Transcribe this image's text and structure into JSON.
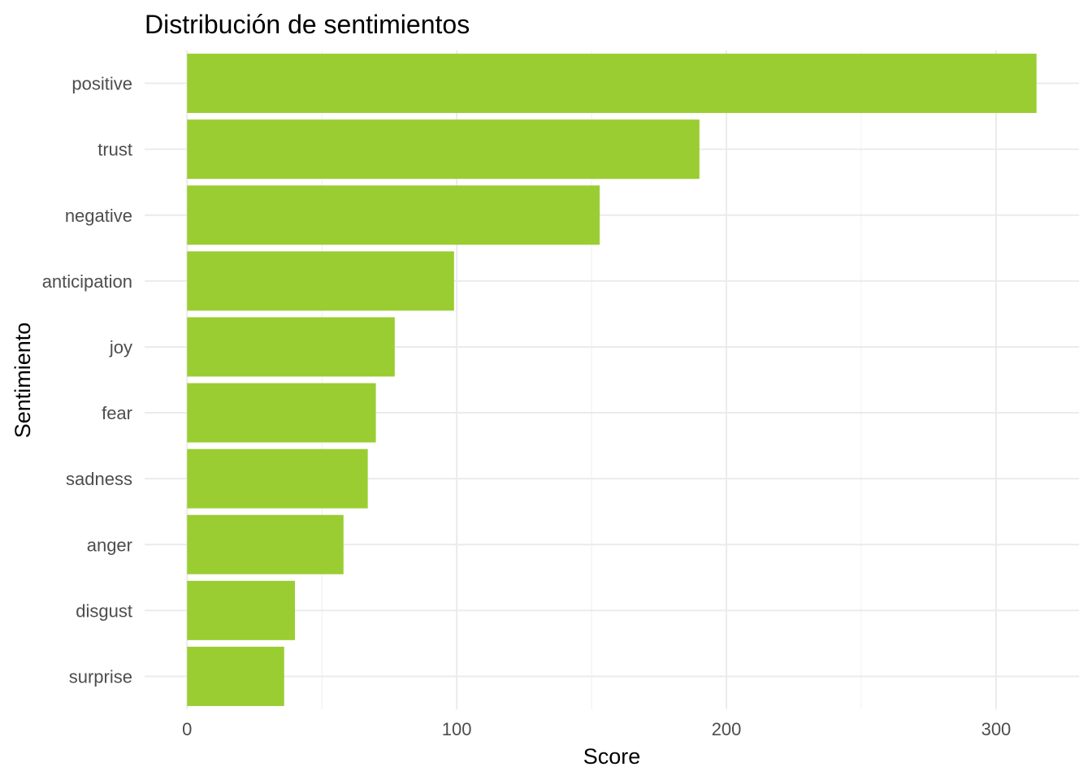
{
  "chart_data": {
    "type": "bar",
    "orientation": "horizontal",
    "title": "Distribución de sentimientos",
    "xlabel": "Score",
    "ylabel": "Sentimiento",
    "categories": [
      "positive",
      "trust",
      "negative",
      "anticipation",
      "joy",
      "fear",
      "sadness",
      "anger",
      "disgust",
      "surprise"
    ],
    "values": [
      315,
      190,
      153,
      99,
      77,
      70,
      67,
      58,
      40,
      36
    ],
    "xlim": [
      -15.75,
      330.75
    ],
    "xticks": [
      0,
      100,
      200,
      300
    ],
    "grid": true,
    "legend": "none",
    "bar_color": "#9ACD32",
    "gridline_color": "#ebebeb"
  }
}
